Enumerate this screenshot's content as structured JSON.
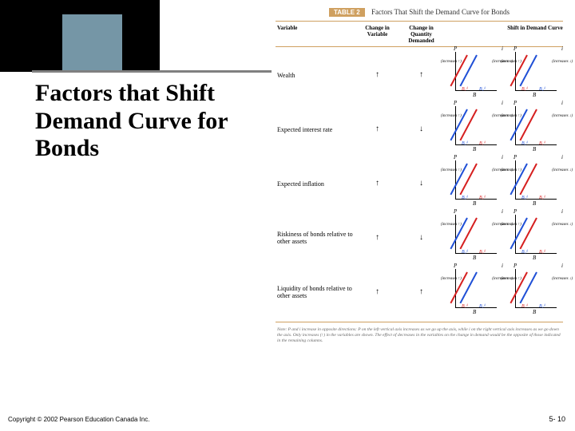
{
  "title": "Factors that Shift Demand Curve for Bonds",
  "copyright": "Copyright © 2002 Pearson Education Canada Inc.",
  "pagenum": "5- 10",
  "table": {
    "label": "TABLE 2",
    "caption": "Factors That Shift the Demand Curve for Bonds",
    "headers": {
      "variable": "Variable",
      "change": "Change in Variable",
      "quantity": "Change in Quantity Demanded",
      "shift": "Shift in Demand Curve"
    },
    "rows": [
      {
        "variable": "Wealth",
        "change": "up",
        "quantity": "up",
        "shift_dir": "right",
        "inc_left": "(increases ↑)",
        "inc_right": "(increases ↓)"
      },
      {
        "variable": "Expected interest rate",
        "change": "up",
        "quantity": "down",
        "shift_dir": "left",
        "inc_left": "(increases ↑)",
        "inc_right": "(increases ↓)"
      },
      {
        "variable": "Expected inflation",
        "change": "up",
        "quantity": "down",
        "shift_dir": "left",
        "inc_left": "(increases ↑)",
        "inc_right": "(increases ↓)"
      },
      {
        "variable": "Riskiness of bonds relative to other assets",
        "change": "up",
        "quantity": "down",
        "shift_dir": "left",
        "inc_left": "(increases ↑)",
        "inc_right": "(increases ↓)"
      },
      {
        "variable": "Liquidity of bonds relative to other assets",
        "change": "up",
        "quantity": "up",
        "shift_dir": "right",
        "inc_left": "(increases ↑)",
        "inc_right": "(increases ↓)"
      }
    ],
    "note": "Note: P and i increase in opposite directions: P on the left vertical axis increases as we go up the axis, while i on the right vertical axis increases as we go down the axis. Only increases (↑) in the variables are shown. The effect of decreases in the variables on the change in demand would be the opposite of those indicated in the remaining columns.",
    "graph": {
      "axis_p": "P",
      "axis_i": "i",
      "axis_b": "B",
      "bd1": "B₁ᵈ",
      "bd2": "B₂ᵈ",
      "colors": {
        "line1": "#d62020",
        "line2": "#2050d6"
      }
    }
  }
}
